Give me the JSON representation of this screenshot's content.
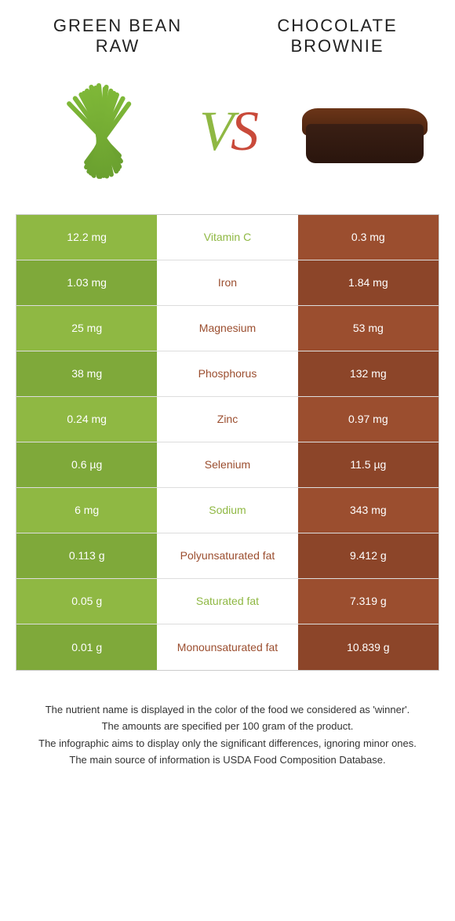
{
  "titles": {
    "left": "GREEN BEAN RAW",
    "right": "CHOCOLATE BROWNIE"
  },
  "colors": {
    "green": "#8fb843",
    "green_dark": "#7fa93a",
    "brown": "#9b4e2f",
    "brown_dark": "#8c4529",
    "label_green": "#8fb843",
    "label_brown": "#9b4e2f"
  },
  "rows": [
    {
      "left": "12.2 mg",
      "label": "Vitamin C",
      "right": "0.3 mg",
      "winner": "green"
    },
    {
      "left": "1.03 mg",
      "label": "Iron",
      "right": "1.84 mg",
      "winner": "brown"
    },
    {
      "left": "25 mg",
      "label": "Magnesium",
      "right": "53 mg",
      "winner": "brown"
    },
    {
      "left": "38 mg",
      "label": "Phosphorus",
      "right": "132 mg",
      "winner": "brown"
    },
    {
      "left": "0.24 mg",
      "label": "Zinc",
      "right": "0.97 mg",
      "winner": "brown"
    },
    {
      "left": "0.6 µg",
      "label": "Selenium",
      "right": "11.5 µg",
      "winner": "brown"
    },
    {
      "left": "6 mg",
      "label": "Sodium",
      "right": "343 mg",
      "winner": "green"
    },
    {
      "left": "0.113 g",
      "label": "Polyunsaturated fat",
      "right": "9.412 g",
      "winner": "brown"
    },
    {
      "left": "0.05 g",
      "label": "Saturated fat",
      "right": "7.319 g",
      "winner": "green"
    },
    {
      "left": "0.01 g",
      "label": "Monounsaturated fat",
      "right": "10.839 g",
      "winner": "brown"
    }
  ],
  "footnotes": [
    "The nutrient name is displayed in the color of the food we considered as 'winner'.",
    "The amounts are specified per 100 gram of the product.",
    "The infographic aims to display only the significant differences, ignoring minor ones.",
    "The main source of information is USDA Food Composition Database."
  ]
}
